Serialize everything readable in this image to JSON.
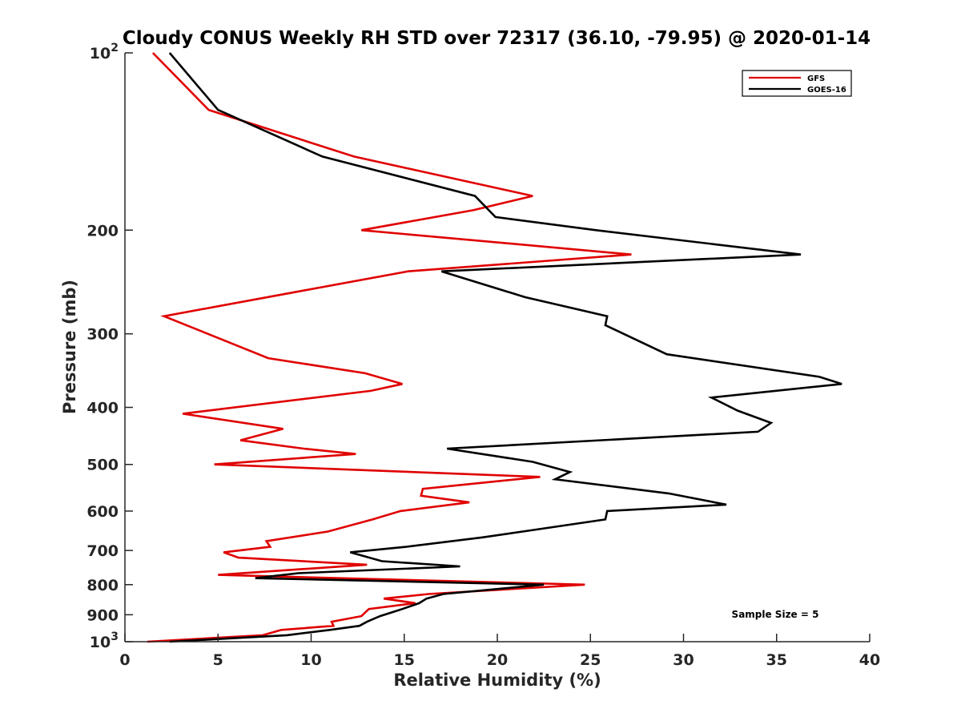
{
  "chart_data": {
    "type": "line",
    "title": "Cloudy CONUS Weekly RH STD over 72317 (36.10, -79.95) @ 2020-01-14",
    "xlabel": "Relative Humidity (%)",
    "ylabel": "Pressure (mb)",
    "xlim": [
      0,
      40
    ],
    "ylim": [
      100,
      1000
    ],
    "y_scale": "log",
    "y_reversed": true,
    "grid": false,
    "legend_position": "top-right",
    "x_ticks": [
      0,
      5,
      10,
      15,
      20,
      25,
      30,
      35,
      40
    ],
    "x_tick_labels": [
      "0",
      "5",
      "10",
      "15",
      "20",
      "25",
      "30",
      "35",
      "40"
    ],
    "y_ticks": [
      100,
      200,
      300,
      400,
      500,
      600,
      700,
      800,
      900,
      1000
    ],
    "y_tick_labels": [
      {
        "base": "10",
        "exp": "2"
      },
      {
        "base": "200",
        "exp": ""
      },
      {
        "base": "300",
        "exp": ""
      },
      {
        "base": "400",
        "exp": ""
      },
      {
        "base": "500",
        "exp": ""
      },
      {
        "base": "600",
        "exp": ""
      },
      {
        "base": "700",
        "exp": ""
      },
      {
        "base": "800",
        "exp": ""
      },
      {
        "base": "900",
        "exp": ""
      },
      {
        "base": "10",
        "exp": "3"
      }
    ],
    "annotation": "Sample Size = 5",
    "series": [
      {
        "name": "GFS",
        "color": "#e00000",
        "points": [
          [
            1.5,
            100
          ],
          [
            4.5,
            125
          ],
          [
            12.3,
            150
          ],
          [
            21.9,
            175
          ],
          [
            18.7,
            185
          ],
          [
            12.7,
            200
          ],
          [
            27.2,
            220
          ],
          [
            15.2,
            235
          ],
          [
            2.1,
            280
          ],
          [
            7.7,
            330
          ],
          [
            12.9,
            350
          ],
          [
            14.9,
            365
          ],
          [
            13.2,
            375
          ],
          [
            3.1,
            410
          ],
          [
            8.5,
            435
          ],
          [
            6.2,
            455
          ],
          [
            9.6,
            470
          ],
          [
            12.4,
            480
          ],
          [
            4.8,
            500
          ],
          [
            22.3,
            525
          ],
          [
            16.0,
            550
          ],
          [
            15.9,
            565
          ],
          [
            18.5,
            580
          ],
          [
            14.8,
            600
          ],
          [
            13.3,
            620
          ],
          [
            10.9,
            650
          ],
          [
            7.6,
            675
          ],
          [
            7.8,
            690
          ],
          [
            5.3,
            705
          ],
          [
            6.1,
            720
          ],
          [
            13.0,
            740
          ],
          [
            5.0,
            770
          ],
          [
            24.7,
            800
          ],
          [
            16.3,
            830
          ],
          [
            13.9,
            845
          ],
          [
            15.6,
            860
          ],
          [
            13.1,
            880
          ],
          [
            12.7,
            905
          ],
          [
            11.1,
            925
          ],
          [
            11.2,
            940
          ],
          [
            8.4,
            955
          ],
          [
            7.4,
            975
          ],
          [
            1.2,
            1000
          ]
        ]
      },
      {
        "name": "GOES-16",
        "color": "#000000",
        "points": [
          [
            2.4,
            100
          ],
          [
            5.0,
            125
          ],
          [
            10.6,
            150
          ],
          [
            18.8,
            175
          ],
          [
            19.9,
            190
          ],
          [
            25.3,
            200
          ],
          [
            36.3,
            220
          ],
          [
            17.0,
            235
          ],
          [
            21.5,
            260
          ],
          [
            25.9,
            280
          ],
          [
            25.8,
            290
          ],
          [
            29.1,
            325
          ],
          [
            37.3,
            355
          ],
          [
            38.5,
            365
          ],
          [
            31.5,
            385
          ],
          [
            32.9,
            405
          ],
          [
            34.7,
            425
          ],
          [
            34.0,
            440
          ],
          [
            17.3,
            470
          ],
          [
            21.9,
            495
          ],
          [
            23.9,
            515
          ],
          [
            23.1,
            530
          ],
          [
            29.2,
            560
          ],
          [
            32.3,
            585
          ],
          [
            25.9,
            600
          ],
          [
            25.8,
            620
          ],
          [
            22.1,
            645
          ],
          [
            19.2,
            665
          ],
          [
            15.1,
            690
          ],
          [
            12.1,
            705
          ],
          [
            13.8,
            730
          ],
          [
            18.0,
            745
          ],
          [
            9.3,
            765
          ],
          [
            7.0,
            780
          ],
          [
            22.5,
            800
          ],
          [
            17.1,
            830
          ],
          [
            16.2,
            845
          ],
          [
            15.8,
            860
          ],
          [
            14.9,
            880
          ],
          [
            13.7,
            905
          ],
          [
            13.0,
            925
          ],
          [
            12.6,
            940
          ],
          [
            11.0,
            955
          ],
          [
            8.7,
            975
          ],
          [
            2.4,
            1000
          ]
        ]
      }
    ]
  }
}
